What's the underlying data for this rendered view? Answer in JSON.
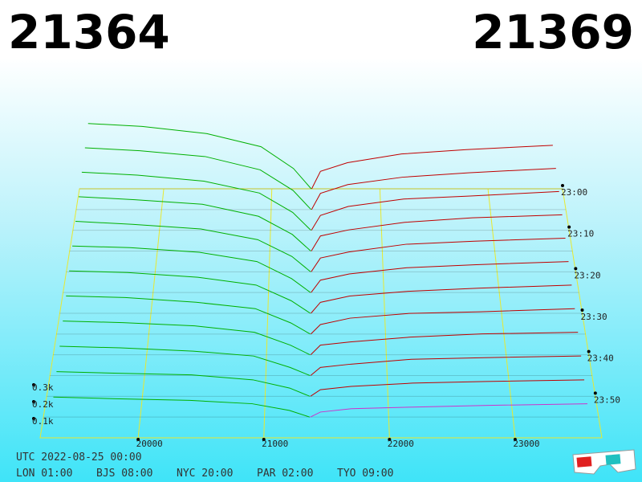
{
  "chart_data": {
    "type": "depth3d",
    "bid": 21364,
    "ask": 21369,
    "bid_color": "#00b000",
    "ask_color": "#c00000",
    "highlight_color": "#cc33cc",
    "date_label": "UTC 2022-08-25 00:00",
    "clocks": [
      "LON 01:00",
      "BJS 08:00",
      "NYC 20:00",
      "PAR 02:00",
      "TYO 09:00"
    ],
    "xlim": [
      19220,
      23690
    ],
    "xticks": [
      20000,
      21000,
      22000,
      23000
    ],
    "zticks": [
      {
        "value": 0.1,
        "label": "0.1k"
      },
      {
        "value": 0.2,
        "label": "0.2k"
      },
      {
        "value": 0.3,
        "label": "0.3k"
      }
    ],
    "time_ticks": [
      "23:00",
      "23:10",
      "23:20",
      "23:30",
      "23:40",
      "23:50"
    ],
    "bid_prices": [
      19300,
      19800,
      20400,
      20900,
      21200,
      21364
    ],
    "ask_prices": [
      21369,
      21450,
      21700,
      22200,
      22800,
      23600
    ],
    "snapshots": [
      {
        "time": "23:00",
        "bids": [
          0.45,
          0.43,
          0.38,
          0.29,
          0.14,
          0
        ],
        "asks": [
          0,
          0.12,
          0.18,
          0.24,
          0.27,
          0.3
        ]
      },
      {
        "time": "23:05",
        "bids": [
          0.42,
          0.4,
          0.36,
          0.27,
          0.13,
          0
        ],
        "asks": [
          0,
          0.11,
          0.17,
          0.22,
          0.25,
          0.28
        ]
      },
      {
        "time": "23:10",
        "bids": [
          0.39,
          0.37,
          0.33,
          0.25,
          0.12,
          0
        ],
        "asks": [
          0,
          0.1,
          0.16,
          0.21,
          0.23,
          0.26
        ]
      },
      {
        "time": "23:15",
        "bids": [
          0.36,
          0.34,
          0.31,
          0.23,
          0.11,
          0
        ],
        "asks": [
          0,
          0.1,
          0.14,
          0.19,
          0.22,
          0.24
        ]
      },
      {
        "time": "23:20",
        "bids": [
          0.33,
          0.31,
          0.28,
          0.21,
          0.1,
          0
        ],
        "asks": [
          0,
          0.09,
          0.13,
          0.18,
          0.2,
          0.22
        ]
      },
      {
        "time": "23:25",
        "bids": [
          0.3,
          0.29,
          0.26,
          0.2,
          0.09,
          0
        ],
        "asks": [
          0,
          0.08,
          0.12,
          0.16,
          0.18,
          0.2
        ]
      },
      {
        "time": "23:30",
        "bids": [
          0.27,
          0.26,
          0.23,
          0.18,
          0.08,
          0
        ],
        "asks": [
          0,
          0.07,
          0.11,
          0.14,
          0.16,
          0.18
        ]
      },
      {
        "time": "23:35",
        "bids": [
          0.24,
          0.23,
          0.2,
          0.16,
          0.07,
          0
        ],
        "asks": [
          0,
          0.06,
          0.1,
          0.13,
          0.14,
          0.16
        ]
      },
      {
        "time": "23:40",
        "bids": [
          0.21,
          0.2,
          0.18,
          0.14,
          0.06,
          0
        ],
        "asks": [
          0,
          0.06,
          0.08,
          0.11,
          0.13,
          0.14
        ]
      },
      {
        "time": "23:45",
        "bids": [
          0.18,
          0.17,
          0.15,
          0.12,
          0.05,
          0
        ],
        "asks": [
          0,
          0.05,
          0.07,
          0.1,
          0.11,
          0.12
        ]
      },
      {
        "time": "23:50",
        "bids": [
          0.15,
          0.14,
          0.13,
          0.1,
          0.05,
          0
        ],
        "asks": [
          0,
          0.04,
          0.06,
          0.08,
          0.09,
          0.1
        ]
      },
      {
        "time": "23:55",
        "bids": [
          0.12,
          0.11,
          0.1,
          0.08,
          0.04,
          0
        ],
        "asks": [
          0,
          0.03,
          0.05,
          0.06,
          0.07,
          0.08
        ]
      }
    ]
  }
}
